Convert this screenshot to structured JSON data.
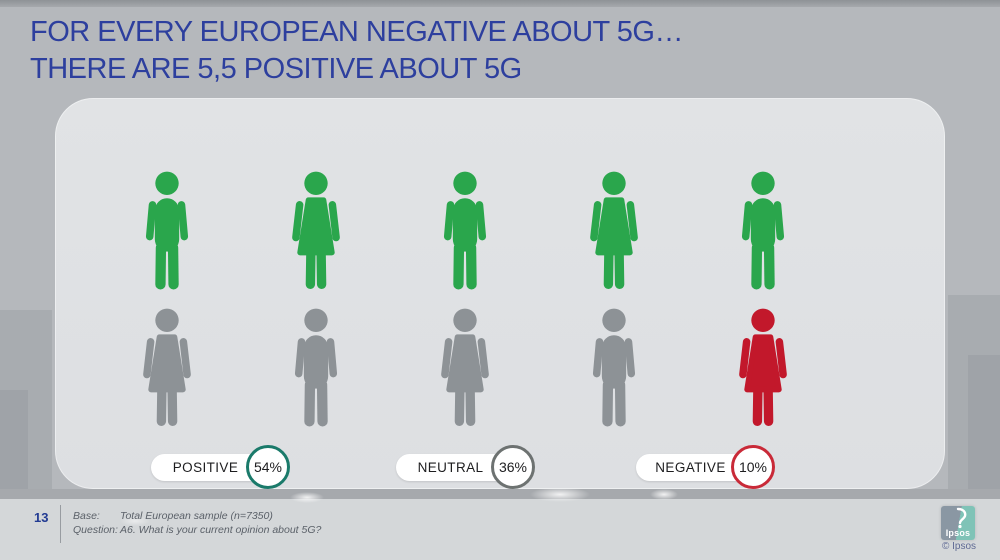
{
  "title": {
    "line1": "FOR EVERY EUROPEAN NEGATIVE ABOUT 5G…",
    "line2": "THERE ARE 5,5 POSITIVE ABOUT 5G",
    "color": "#2d3f9e"
  },
  "chart_data": {
    "type": "pictogram",
    "title": "FOR EVERY EUROPEAN NEGATIVE ABOUT 5G… THERE ARE 5,5 POSITIVE ABOUT 5G",
    "categories": [
      "POSITIVE",
      "NEUTRAL",
      "NEGATIVE"
    ],
    "values": [
      54,
      36,
      10
    ],
    "unit": "%",
    "positive_to_negative_ratio": "5,5",
    "pictogram_units": {
      "total_figures": 10,
      "positive_green_figures": 5,
      "neutral_gray_figures": 4,
      "negative_red_figures": 1
    },
    "colors": {
      "positive": "#2aa64c",
      "neutral": "#8d9296",
      "negative": "#c2182b"
    },
    "legend_position": "bottom",
    "base": "Total European sample (n=7350)",
    "question": "A6. What is your current opinion about 5G?"
  },
  "pictogram": {
    "colors": {
      "positive": "#2aa64c",
      "neutral": "#8d9296",
      "negative": "#c2182b"
    },
    "rows": [
      [
        {
          "gender": "male",
          "sentiment": "positive"
        },
        {
          "gender": "female",
          "sentiment": "positive"
        },
        {
          "gender": "male",
          "sentiment": "positive"
        },
        {
          "gender": "female",
          "sentiment": "positive"
        },
        {
          "gender": "male",
          "sentiment": "positive"
        }
      ],
      [
        {
          "gender": "female",
          "sentiment": "neutral"
        },
        {
          "gender": "male",
          "sentiment": "neutral"
        },
        {
          "gender": "female",
          "sentiment": "neutral"
        },
        {
          "gender": "male",
          "sentiment": "neutral"
        },
        {
          "gender": "female",
          "sentiment": "negative"
        }
      ]
    ]
  },
  "legend": {
    "items": [
      {
        "label": "POSITIVE",
        "value": "54%",
        "ring_color": "#1a7a6a"
      },
      {
        "label": "NEUTRAL",
        "value": "36%",
        "ring_color": "#6d7271"
      },
      {
        "label": "NEGATIVE",
        "value": "10%",
        "ring_color": "#c92a38"
      }
    ]
  },
  "footer": {
    "page_number": "13",
    "base_label": "Base:",
    "base_value": "Total European sample (n=7350)",
    "question_label": "Question:",
    "question_value": "A6. What is your current opinion about 5G?",
    "logo_text": "Ipsos",
    "copyright": "© Ipsos"
  }
}
